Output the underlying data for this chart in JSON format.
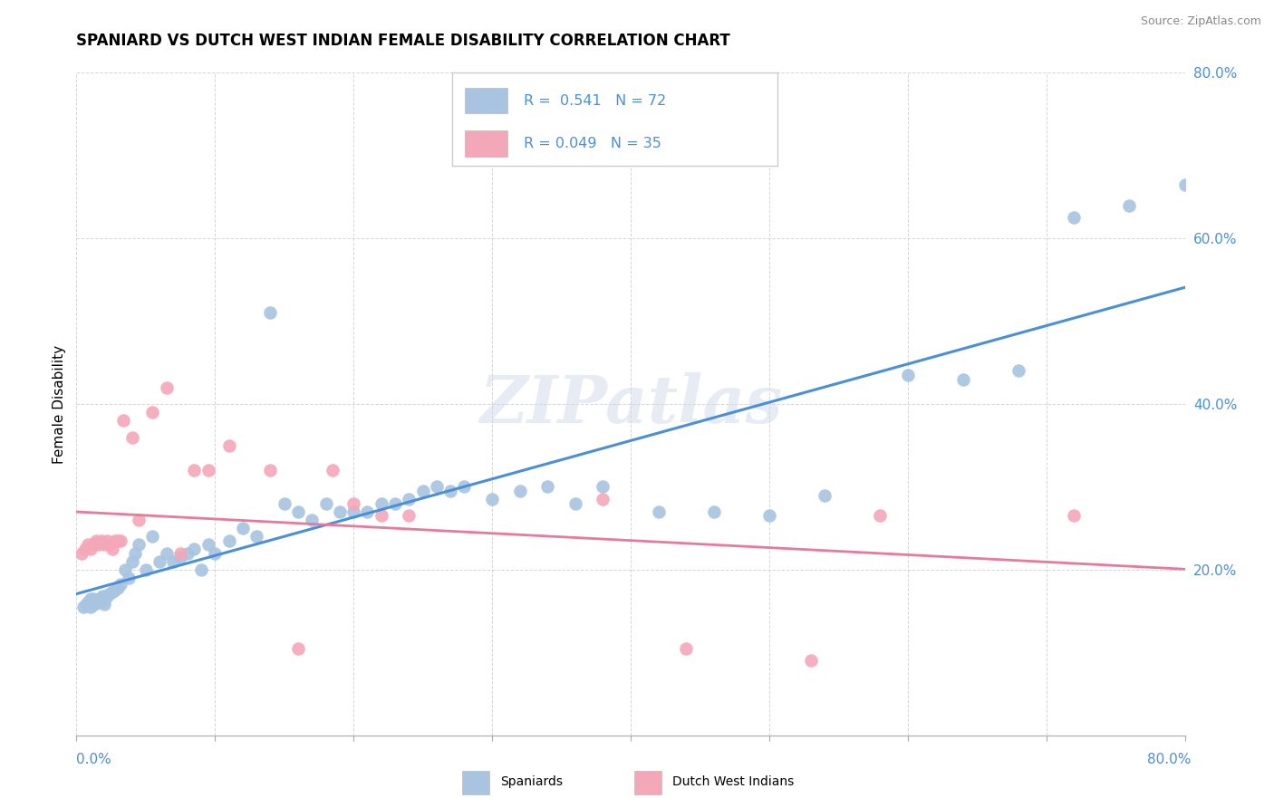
{
  "title": "SPANIARD VS DUTCH WEST INDIAN FEMALE DISABILITY CORRELATION CHART",
  "source": "Source: ZipAtlas.com",
  "ylabel": "Female Disability",
  "xlim": [
    0.0,
    0.8
  ],
  "ylim": [
    0.0,
    0.8
  ],
  "legend_text_color": "#4a90d9",
  "spaniards_color": "#a8c4e0",
  "dutch_color": "#f4a7b9",
  "spaniards_line_color": "#4a90d9",
  "dutch_line_color": "#e8799a",
  "watermark": "ZIPatlas",
  "spaniards_x": [
    0.005,
    0.007,
    0.008,
    0.009,
    0.01,
    0.01,
    0.011,
    0.012,
    0.013,
    0.014,
    0.015,
    0.016,
    0.017,
    0.018,
    0.019,
    0.02,
    0.021,
    0.022,
    0.023,
    0.025,
    0.027,
    0.03,
    0.032,
    0.035,
    0.038,
    0.04,
    0.042,
    0.045,
    0.05,
    0.055,
    0.06,
    0.065,
    0.07,
    0.075,
    0.08,
    0.085,
    0.09,
    0.095,
    0.1,
    0.11,
    0.12,
    0.13,
    0.14,
    0.15,
    0.16,
    0.17,
    0.18,
    0.19,
    0.2,
    0.21,
    0.22,
    0.23,
    0.24,
    0.25,
    0.26,
    0.27,
    0.28,
    0.3,
    0.32,
    0.34,
    0.36,
    0.38,
    0.42,
    0.46,
    0.5,
    0.54,
    0.6,
    0.64,
    0.68,
    0.72,
    0.76,
    0.8
  ],
  "spaniards_y": [
    0.155,
    0.158,
    0.16,
    0.162,
    0.155,
    0.165,
    0.162,
    0.165,
    0.158,
    0.16,
    0.16,
    0.162,
    0.165,
    0.162,
    0.168,
    0.158,
    0.165,
    0.168,
    0.17,
    0.172,
    0.175,
    0.178,
    0.182,
    0.2,
    0.19,
    0.21,
    0.22,
    0.23,
    0.2,
    0.24,
    0.21,
    0.22,
    0.21,
    0.215,
    0.22,
    0.225,
    0.2,
    0.23,
    0.22,
    0.235,
    0.25,
    0.24,
    0.51,
    0.28,
    0.27,
    0.26,
    0.28,
    0.27,
    0.27,
    0.27,
    0.28,
    0.28,
    0.285,
    0.295,
    0.3,
    0.295,
    0.3,
    0.285,
    0.295,
    0.3,
    0.28,
    0.3,
    0.27,
    0.27,
    0.265,
    0.29,
    0.435,
    0.43,
    0.44,
    0.625,
    0.64,
    0.665
  ],
  "dutch_x": [
    0.004,
    0.006,
    0.008,
    0.01,
    0.012,
    0.014,
    0.016,
    0.018,
    0.02,
    0.022,
    0.024,
    0.026,
    0.028,
    0.03,
    0.032,
    0.034,
    0.04,
    0.045,
    0.055,
    0.065,
    0.075,
    0.085,
    0.095,
    0.11,
    0.14,
    0.16,
    0.185,
    0.2,
    0.22,
    0.24,
    0.38,
    0.44,
    0.53,
    0.58,
    0.72
  ],
  "dutch_y": [
    0.22,
    0.225,
    0.23,
    0.225,
    0.23,
    0.235,
    0.23,
    0.235,
    0.23,
    0.235,
    0.23,
    0.225,
    0.235,
    0.235,
    0.235,
    0.38,
    0.36,
    0.26,
    0.39,
    0.42,
    0.22,
    0.32,
    0.32,
    0.35,
    0.32,
    0.105,
    0.32,
    0.28,
    0.265,
    0.265,
    0.285,
    0.105,
    0.09,
    0.265,
    0.265
  ]
}
